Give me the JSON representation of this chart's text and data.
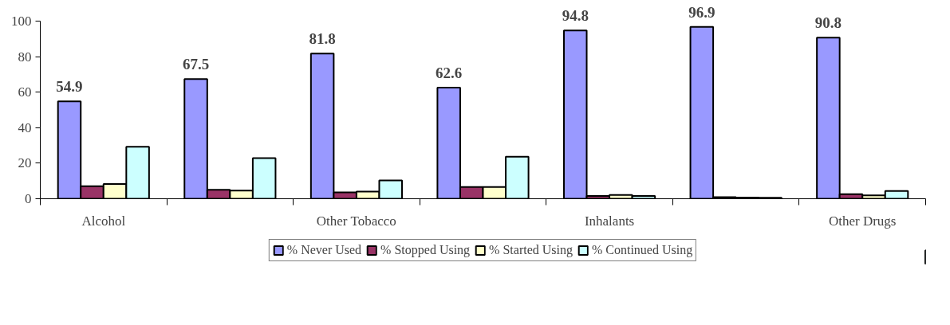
{
  "chart_data": {
    "type": "bar",
    "categories": [
      "Alcohol",
      null,
      "Other Tobacco",
      null,
      "Inhalants",
      null,
      "Other Drugs"
    ],
    "series": [
      {
        "name": "% Never Used",
        "color": "#9999ff",
        "values": [
          54.9,
          67.5,
          81.8,
          62.6,
          94.8,
          96.9,
          90.8
        ],
        "value_labels": [
          "54.9",
          "67.5",
          "81.8",
          "62.6",
          "94.8",
          "96.9",
          "90.8"
        ]
      },
      {
        "name": "% Stopped Using",
        "color": "#993366",
        "values": [
          7.1,
          5.0,
          3.6,
          6.6,
          1.6,
          0.9,
          2.6
        ]
      },
      {
        "name": "% Started Using",
        "color": "#ffffcc",
        "values": [
          8.3,
          4.6,
          4.0,
          6.6,
          2.1,
          0.7,
          1.9
        ]
      },
      {
        "name": "% Continued Using",
        "color": "#ccffff",
        "values": [
          29.3,
          22.9,
          10.3,
          23.7,
          1.6,
          0.6,
          4.4
        ]
      }
    ],
    "ylim": [
      0,
      100
    ],
    "yticks": [
      0,
      20,
      40,
      60,
      80,
      100
    ],
    "grid": false,
    "legend": "bottom"
  }
}
